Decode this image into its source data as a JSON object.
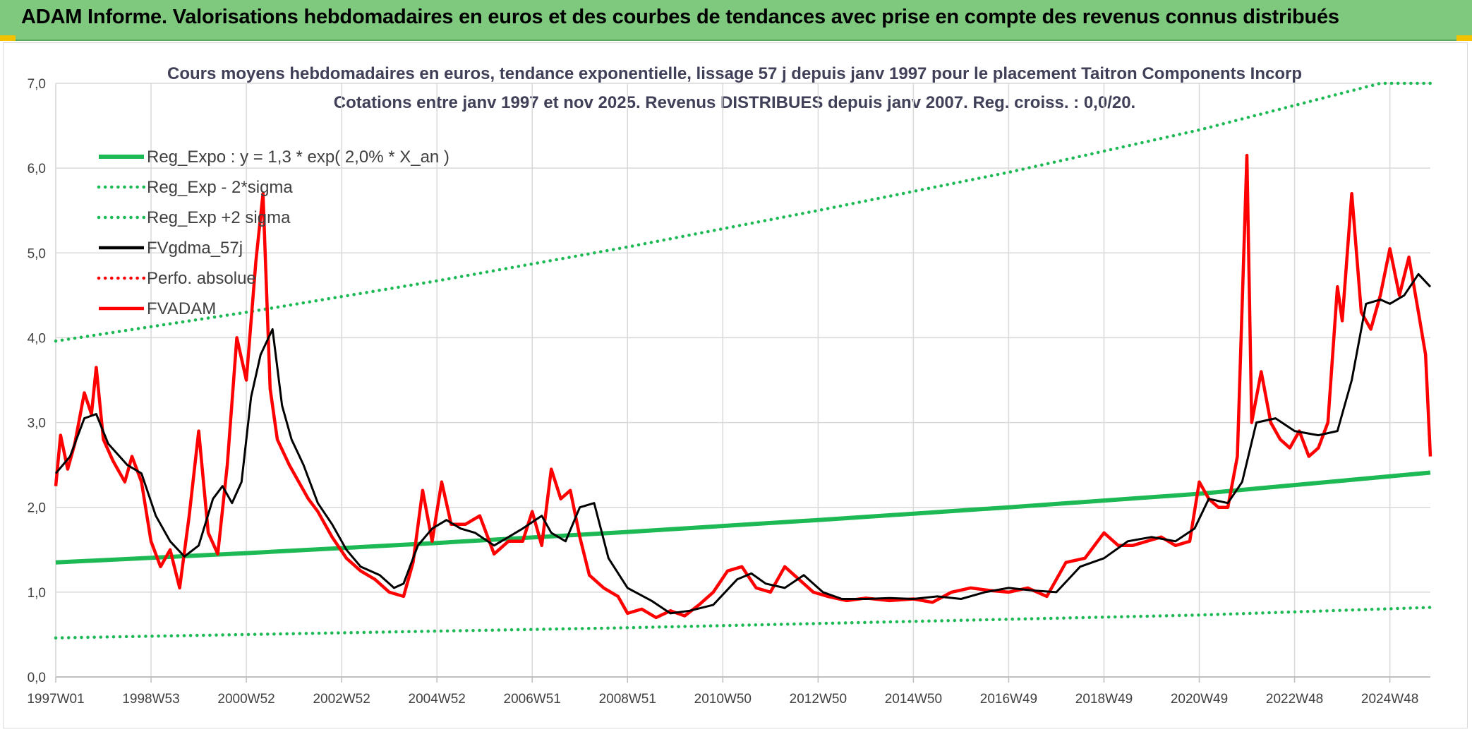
{
  "header": {
    "title": "ADAM Informe. Valorisations hebdomadaires en euros et des courbes de tendances avec prise en compte des revenus connus distribués"
  },
  "colors": {
    "header_bg": "#7ec97e",
    "reg_expo": "#1db954",
    "sigma": "#1db954",
    "fvgdma": "#000000",
    "perfo": "#ff0000",
    "fvadam": "#ff0000"
  },
  "chart_data": {
    "type": "line",
    "title_line1": "Cours moyens hebdomadaires en euros, tendance exponentielle, lissage 57 j depuis janv 1997 pour le placement Taitron Components Incorp",
    "title_line2": "Cotations entre janv 1997 et nov 2025. Revenus DISTRIBUES depuis janv 2007. Reg. croiss. : 0,0/20.",
    "xlabel": "",
    "ylabel": "",
    "ylim": [
      0,
      7
    ],
    "xlim": [
      1997.0,
      2025.85
    ],
    "grid": true,
    "legend_position": "upper-left",
    "y_ticks": [
      "0,0",
      "1,0",
      "2,0",
      "3,0",
      "4,0",
      "5,0",
      "6,0",
      "7,0"
    ],
    "x_ticks": [
      {
        "label": "1997W01",
        "x": 1997.0
      },
      {
        "label": "1998W53",
        "x": 1999.0
      },
      {
        "label": "2000W52",
        "x": 2001.0
      },
      {
        "label": "2002W52",
        "x": 2003.0
      },
      {
        "label": "2004W52",
        "x": 2005.0
      },
      {
        "label": "2006W51",
        "x": 2007.0
      },
      {
        "label": "2008W51",
        "x": 2009.0
      },
      {
        "label": "2010W50",
        "x": 2011.0
      },
      {
        "label": "2012W50",
        "x": 2013.0
      },
      {
        "label": "2014W50",
        "x": 2015.0
      },
      {
        "label": "2016W49",
        "x": 2017.0
      },
      {
        "label": "2018W49",
        "x": 2019.0
      },
      {
        "label": "2020W49",
        "x": 2021.0
      },
      {
        "label": "2022W48",
        "x": 2023.0
      },
      {
        "label": "2024W48",
        "x": 2025.0
      }
    ],
    "series": [
      {
        "name": "Reg_Expo : y = 1,3 * exp( 2,0% *  X_an )",
        "style": "solid-thick",
        "color": "#1db954",
        "points": [
          [
            1997.0,
            1.35
          ],
          [
            2001.0,
            1.46
          ],
          [
            2005.0,
            1.58
          ],
          [
            2009.0,
            1.71
          ],
          [
            2013.0,
            1.85
          ],
          [
            2017.0,
            2.0
          ],
          [
            2021.0,
            2.16
          ],
          [
            2025.85,
            2.41
          ]
        ]
      },
      {
        "name": "Reg_Exp - 2*sigma",
        "style": "dotted",
        "color": "#1db954",
        "points": [
          [
            1997.0,
            0.46
          ],
          [
            2001.0,
            0.5
          ],
          [
            2005.0,
            0.54
          ],
          [
            2009.0,
            0.58
          ],
          [
            2013.0,
            0.63
          ],
          [
            2017.0,
            0.68
          ],
          [
            2021.0,
            0.73
          ],
          [
            2025.85,
            0.82
          ]
        ]
      },
      {
        "name": "Reg_Exp +2 sigma",
        "style": "dotted",
        "color": "#1db954",
        "points": [
          [
            1997.0,
            3.96
          ],
          [
            2001.0,
            4.3
          ],
          [
            2005.0,
            4.67
          ],
          [
            2009.0,
            5.07
          ],
          [
            2013.0,
            5.5
          ],
          [
            2017.0,
            5.95
          ],
          [
            2021.0,
            6.45
          ],
          [
            2024.8,
            7.0
          ],
          [
            2025.85,
            7.0
          ]
        ]
      },
      {
        "name": "FVgdma_57j",
        "style": "solid",
        "color": "#000000",
        "points": [
          [
            1997.0,
            2.4
          ],
          [
            1997.3,
            2.6
          ],
          [
            1997.6,
            3.05
          ],
          [
            1997.85,
            3.1
          ],
          [
            1998.1,
            2.75
          ],
          [
            1998.5,
            2.5
          ],
          [
            1998.8,
            2.4
          ],
          [
            1999.1,
            1.9
          ],
          [
            1999.4,
            1.6
          ],
          [
            1999.7,
            1.42
          ],
          [
            2000.0,
            1.55
          ],
          [
            2000.3,
            2.1
          ],
          [
            2000.5,
            2.25
          ],
          [
            2000.7,
            2.05
          ],
          [
            2000.9,
            2.3
          ],
          [
            2001.1,
            3.3
          ],
          [
            2001.3,
            3.8
          ],
          [
            2001.55,
            4.1
          ],
          [
            2001.75,
            3.2
          ],
          [
            2001.95,
            2.8
          ],
          [
            2002.2,
            2.5
          ],
          [
            2002.5,
            2.05
          ],
          [
            2002.8,
            1.8
          ],
          [
            2003.1,
            1.5
          ],
          [
            2003.4,
            1.3
          ],
          [
            2003.8,
            1.2
          ],
          [
            2004.1,
            1.05
          ],
          [
            2004.3,
            1.1
          ],
          [
            2004.6,
            1.55
          ],
          [
            2004.9,
            1.75
          ],
          [
            2005.2,
            1.85
          ],
          [
            2005.5,
            1.75
          ],
          [
            2005.8,
            1.7
          ],
          [
            2006.2,
            1.55
          ],
          [
            2006.5,
            1.65
          ],
          [
            2006.8,
            1.75
          ],
          [
            2007.2,
            1.9
          ],
          [
            2007.4,
            1.7
          ],
          [
            2007.7,
            1.6
          ],
          [
            2008.0,
            2.0
          ],
          [
            2008.3,
            2.05
          ],
          [
            2008.6,
            1.4
          ],
          [
            2009.0,
            1.05
          ],
          [
            2009.5,
            0.9
          ],
          [
            2009.9,
            0.75
          ],
          [
            2010.3,
            0.78
          ],
          [
            2010.8,
            0.85
          ],
          [
            2011.3,
            1.15
          ],
          [
            2011.6,
            1.22
          ],
          [
            2011.9,
            1.1
          ],
          [
            2012.3,
            1.05
          ],
          [
            2012.7,
            1.2
          ],
          [
            2013.1,
            1.0
          ],
          [
            2013.5,
            0.92
          ],
          [
            2014.0,
            0.92
          ],
          [
            2014.5,
            0.93
          ],
          [
            2015.0,
            0.92
          ],
          [
            2015.5,
            0.95
          ],
          [
            2016.0,
            0.92
          ],
          [
            2016.5,
            1.0
          ],
          [
            2017.0,
            1.05
          ],
          [
            2017.5,
            1.02
          ],
          [
            2018.0,
            1.0
          ],
          [
            2018.5,
            1.3
          ],
          [
            2019.0,
            1.4
          ],
          [
            2019.5,
            1.6
          ],
          [
            2020.0,
            1.65
          ],
          [
            2020.5,
            1.6
          ],
          [
            2020.9,
            1.75
          ],
          [
            2021.2,
            2.1
          ],
          [
            2021.6,
            2.05
          ],
          [
            2021.9,
            2.3
          ],
          [
            2022.2,
            3.0
          ],
          [
            2022.6,
            3.05
          ],
          [
            2023.0,
            2.9
          ],
          [
            2023.5,
            2.85
          ],
          [
            2023.9,
            2.9
          ],
          [
            2024.2,
            3.5
          ],
          [
            2024.5,
            4.4
          ],
          [
            2024.8,
            4.45
          ],
          [
            2025.0,
            4.4
          ],
          [
            2025.3,
            4.5
          ],
          [
            2025.6,
            4.75
          ],
          [
            2025.85,
            4.6
          ]
        ]
      },
      {
        "name": "Perfo. absolue",
        "style": "dotted",
        "color": "#ff0000",
        "points": []
      },
      {
        "name": "FVADAM",
        "style": "solid-thick",
        "color": "#ff0000",
        "points": [
          [
            1997.0,
            2.25
          ],
          [
            1997.1,
            2.85
          ],
          [
            1997.25,
            2.45
          ],
          [
            1997.4,
            2.75
          ],
          [
            1997.6,
            3.35
          ],
          [
            1997.75,
            3.1
          ],
          [
            1997.85,
            3.65
          ],
          [
            1998.0,
            2.8
          ],
          [
            1998.2,
            2.55
          ],
          [
            1998.45,
            2.3
          ],
          [
            1998.6,
            2.6
          ],
          [
            1998.8,
            2.3
          ],
          [
            1999.0,
            1.6
          ],
          [
            1999.2,
            1.3
          ],
          [
            1999.4,
            1.5
          ],
          [
            1999.6,
            1.05
          ],
          [
            1999.8,
            1.9
          ],
          [
            2000.0,
            2.9
          ],
          [
            2000.2,
            1.7
          ],
          [
            2000.4,
            1.45
          ],
          [
            2000.6,
            2.5
          ],
          [
            2000.8,
            4.0
          ],
          [
            2001.0,
            3.5
          ],
          [
            2001.2,
            4.9
          ],
          [
            2001.35,
            5.7
          ],
          [
            2001.5,
            3.4
          ],
          [
            2001.65,
            2.8
          ],
          [
            2001.9,
            2.5
          ],
          [
            2002.1,
            2.3
          ],
          [
            2002.3,
            2.1
          ],
          [
            2002.5,
            1.95
          ],
          [
            2002.8,
            1.65
          ],
          [
            2003.1,
            1.4
          ],
          [
            2003.4,
            1.25
          ],
          [
            2003.7,
            1.15
          ],
          [
            2004.0,
            1.0
          ],
          [
            2004.3,
            0.95
          ],
          [
            2004.5,
            1.35
          ],
          [
            2004.7,
            2.2
          ],
          [
            2004.9,
            1.6
          ],
          [
            2005.1,
            2.3
          ],
          [
            2005.3,
            1.8
          ],
          [
            2005.6,
            1.8
          ],
          [
            2005.9,
            1.9
          ],
          [
            2006.2,
            1.45
          ],
          [
            2006.5,
            1.6
          ],
          [
            2006.8,
            1.6
          ],
          [
            2007.0,
            1.95
          ],
          [
            2007.2,
            1.55
          ],
          [
            2007.4,
            2.45
          ],
          [
            2007.6,
            2.1
          ],
          [
            2007.8,
            2.2
          ],
          [
            2008.0,
            1.65
          ],
          [
            2008.2,
            1.2
          ],
          [
            2008.5,
            1.05
          ],
          [
            2008.8,
            0.95
          ],
          [
            2009.0,
            0.75
          ],
          [
            2009.3,
            0.8
          ],
          [
            2009.6,
            0.7
          ],
          [
            2009.9,
            0.78
          ],
          [
            2010.2,
            0.72
          ],
          [
            2010.5,
            0.85
          ],
          [
            2010.8,
            1.0
          ],
          [
            2011.1,
            1.25
          ],
          [
            2011.4,
            1.3
          ],
          [
            2011.7,
            1.05
          ],
          [
            2012.0,
            1.0
          ],
          [
            2012.3,
            1.3
          ],
          [
            2012.6,
            1.15
          ],
          [
            2012.9,
            1.0
          ],
          [
            2013.2,
            0.95
          ],
          [
            2013.6,
            0.9
          ],
          [
            2014.0,
            0.93
          ],
          [
            2014.5,
            0.9
          ],
          [
            2015.0,
            0.92
          ],
          [
            2015.4,
            0.88
          ],
          [
            2015.8,
            1.0
          ],
          [
            2016.2,
            1.05
          ],
          [
            2016.6,
            1.02
          ],
          [
            2017.0,
            1.0
          ],
          [
            2017.4,
            1.05
          ],
          [
            2017.8,
            0.95
          ],
          [
            2018.2,
            1.35
          ],
          [
            2018.6,
            1.4
          ],
          [
            2019.0,
            1.7
          ],
          [
            2019.3,
            1.55
          ],
          [
            2019.6,
            1.55
          ],
          [
            2019.9,
            1.6
          ],
          [
            2020.2,
            1.65
          ],
          [
            2020.5,
            1.55
          ],
          [
            2020.8,
            1.6
          ],
          [
            2021.0,
            2.3
          ],
          [
            2021.2,
            2.1
          ],
          [
            2021.4,
            2.0
          ],
          [
            2021.6,
            2.0
          ],
          [
            2021.8,
            2.6
          ],
          [
            2022.0,
            6.15
          ],
          [
            2022.1,
            3.0
          ],
          [
            2022.3,
            3.6
          ],
          [
            2022.5,
            3.0
          ],
          [
            2022.7,
            2.8
          ],
          [
            2022.9,
            2.7
          ],
          [
            2023.1,
            2.9
          ],
          [
            2023.3,
            2.6
          ],
          [
            2023.5,
            2.7
          ],
          [
            2023.7,
            3.0
          ],
          [
            2023.9,
            4.6
          ],
          [
            2024.0,
            4.2
          ],
          [
            2024.2,
            5.7
          ],
          [
            2024.4,
            4.3
          ],
          [
            2024.6,
            4.1
          ],
          [
            2024.8,
            4.5
          ],
          [
            2025.0,
            5.05
          ],
          [
            2025.2,
            4.5
          ],
          [
            2025.4,
            4.95
          ],
          [
            2025.6,
            4.3
          ],
          [
            2025.75,
            3.8
          ],
          [
            2025.85,
            2.6
          ]
        ]
      }
    ]
  }
}
